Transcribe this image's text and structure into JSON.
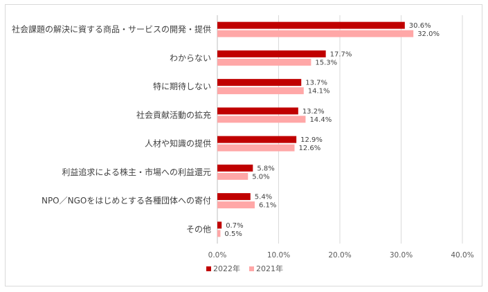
{
  "chart_data": {
    "type": "bar",
    "orientation": "horizontal",
    "categories": [
      "社会課題の解決に資する商品・サービスの開発・提供",
      "わからない",
      "特に期待しない",
      "社会貢献活動の拡充",
      "人材や知識の提供",
      "利益追求による株主・市場への利益還元",
      "NPO／NGOをはじめとする各種団体への寄付",
      "その他"
    ],
    "series": [
      {
        "name": "2022年",
        "color": "#c00000",
        "values": [
          30.6,
          17.7,
          13.7,
          13.2,
          12.9,
          5.8,
          5.4,
          0.7
        ]
      },
      {
        "name": "2021年",
        "color": "#ffa7a7",
        "values": [
          32.0,
          15.3,
          14.1,
          14.4,
          12.6,
          5.0,
          6.1,
          0.5
        ]
      }
    ],
    "xlim": [
      0,
      40
    ],
    "xticks": [
      0,
      10,
      20,
      30,
      40
    ],
    "tick_format": "percent_1dp",
    "grid": "vertical",
    "legend_position": "bottom"
  }
}
